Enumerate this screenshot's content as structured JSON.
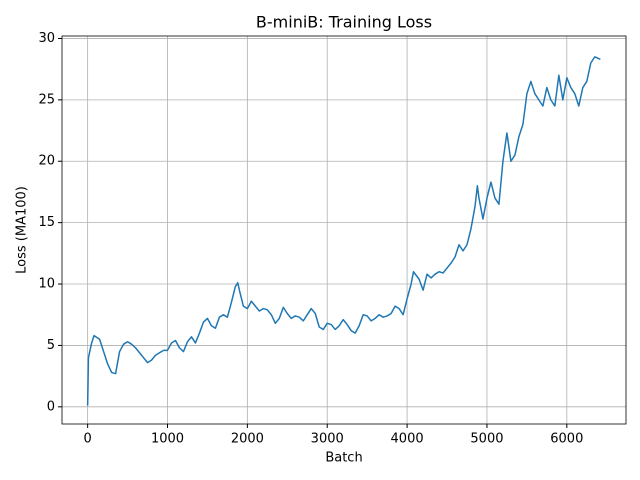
{
  "chart_data": {
    "type": "line",
    "title": "B-miniB: Training Loss",
    "xlabel": "Batch",
    "ylabel": "Loss (MA100)",
    "color": "#1f77b4",
    "grid": true,
    "xlim": [
      -321,
      6741
    ],
    "ylim": [
      -1.4,
      30.2
    ],
    "xticks": [
      0,
      1000,
      2000,
      3000,
      4000,
      5000,
      6000
    ],
    "yticks": [
      0,
      5,
      10,
      15,
      20,
      25,
      30
    ],
    "x": [
      0,
      10,
      50,
      80,
      150,
      200,
      250,
      300,
      350,
      400,
      450,
      500,
      550,
      600,
      650,
      700,
      750,
      800,
      850,
      900,
      950,
      1000,
      1050,
      1100,
      1150,
      1200,
      1250,
      1300,
      1350,
      1400,
      1450,
      1500,
      1550,
      1600,
      1650,
      1700,
      1750,
      1800,
      1850,
      1880,
      1900,
      1950,
      2000,
      2050,
      2100,
      2150,
      2200,
      2250,
      2300,
      2350,
      2400,
      2450,
      2500,
      2550,
      2600,
      2650,
      2700,
      2750,
      2800,
      2850,
      2900,
      2950,
      3000,
      3050,
      3100,
      3150,
      3200,
      3250,
      3300,
      3350,
      3400,
      3450,
      3500,
      3550,
      3600,
      3650,
      3700,
      3750,
      3800,
      3850,
      3900,
      3950,
      4000,
      4050,
      4080,
      4150,
      4200,
      4250,
      4300,
      4350,
      4400,
      4450,
      4500,
      4550,
      4600,
      4650,
      4700,
      4750,
      4800,
      4850,
      4880,
      4900,
      4950,
      5000,
      5050,
      5100,
      5150,
      5200,
      5250,
      5300,
      5350,
      5400,
      5450,
      5500,
      5550,
      5600,
      5650,
      5700,
      5750,
      5800,
      5850,
      5900,
      5950,
      6000,
      6050,
      6100,
      6150,
      6200,
      6250,
      6300,
      6350,
      6420
    ],
    "values": [
      0.1,
      4,
      5.2,
      5.8,
      5.5,
      4.5,
      3.5,
      2.8,
      2.7,
      4.5,
      5.1,
      5.3,
      5.1,
      4.8,
      4.4,
      4.0,
      3.6,
      3.8,
      4.2,
      4.4,
      4.6,
      4.6,
      5.2,
      5.4,
      4.8,
      4.5,
      5.3,
      5.7,
      5.2,
      6.0,
      6.9,
      7.2,
      6.6,
      6.4,
      7.3,
      7.5,
      7.3,
      8.5,
      9.8,
      10.1,
      9.5,
      8.2,
      8.0,
      8.6,
      8.2,
      7.8,
      8.0,
      7.9,
      7.5,
      6.8,
      7.2,
      8.1,
      7.6,
      7.2,
      7.4,
      7.3,
      7.0,
      7.5,
      8.0,
      7.6,
      6.5,
      6.3,
      6.8,
      6.7,
      6.3,
      6.6,
      7.1,
      6.7,
      6.2,
      6.0,
      6.6,
      7.5,
      7.4,
      7.0,
      7.2,
      7.5,
      7.3,
      7.4,
      7.6,
      8.2,
      8.0,
      7.5,
      8.8,
      10.0,
      11.0,
      10.4,
      9.5,
      10.8,
      10.5,
      10.8,
      11.0,
      10.9,
      11.3,
      11.7,
      12.2,
      13.2,
      12.7,
      13.2,
      14.5,
      16.3,
      18.0,
      17.0,
      15.3,
      17.0,
      18.3,
      17.0,
      16.5,
      20.0,
      22.3,
      20.0,
      20.5,
      22.0,
      23.0,
      25.5,
      26.5,
      25.5,
      25.0,
      24.5,
      26.0,
      25.0,
      24.5,
      27.0,
      25.0,
      26.8,
      26.0,
      25.5,
      24.5,
      26.0,
      26.5,
      28.0,
      28.5,
      28.3
    ]
  }
}
